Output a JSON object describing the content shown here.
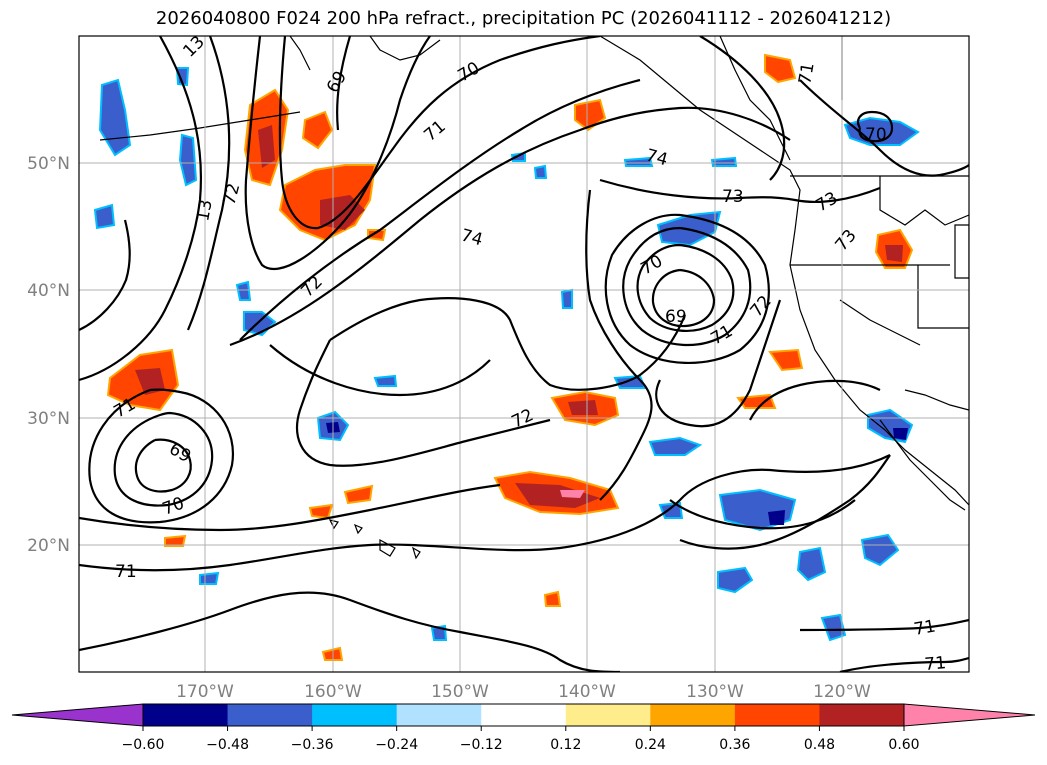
{
  "title": "2026040800 F024 200 hPa refract., precipitation PC (2026041112 - 2026041212)",
  "map": {
    "lon_range": [
      -180,
      -110
    ],
    "lat_range": [
      10,
      60
    ],
    "lon_ticks": [
      "170°W",
      "160°W",
      "150°W",
      "140°W",
      "130°W",
      "120°W"
    ],
    "lat_ticks": [
      "50°N",
      "40°N",
      "30°N",
      "20°N"
    ],
    "grid": true
  },
  "contour_labels": [
    "71",
    "70",
    "69",
    "69",
    "70",
    "71",
    "72",
    "73",
    "74",
    "72",
    "70",
    "69",
    "71",
    "72",
    "73",
    "73",
    "74",
    "13",
    "72",
    "71",
    "70",
    "71",
    "71",
    "71",
    "13"
  ],
  "colorbar": {
    "ticks": [
      "−0.60",
      "−0.48",
      "−0.36",
      "−0.24",
      "−0.12",
      "0.12",
      "0.24",
      "0.36",
      "0.48",
      "0.60"
    ],
    "colors": [
      "#9a32cd",
      "#00008b",
      "#3a5fcd",
      "#00bfff",
      "#b0e2ff",
      "#ffffff",
      "#ffec8b",
      "#ffa500",
      "#ff4500",
      "#b22222",
      "#ff82ab",
      "#ff82ab"
    ]
  },
  "colors": {
    "contour": "#000000",
    "grid": "#b0b0b0",
    "coast": "#000000"
  }
}
